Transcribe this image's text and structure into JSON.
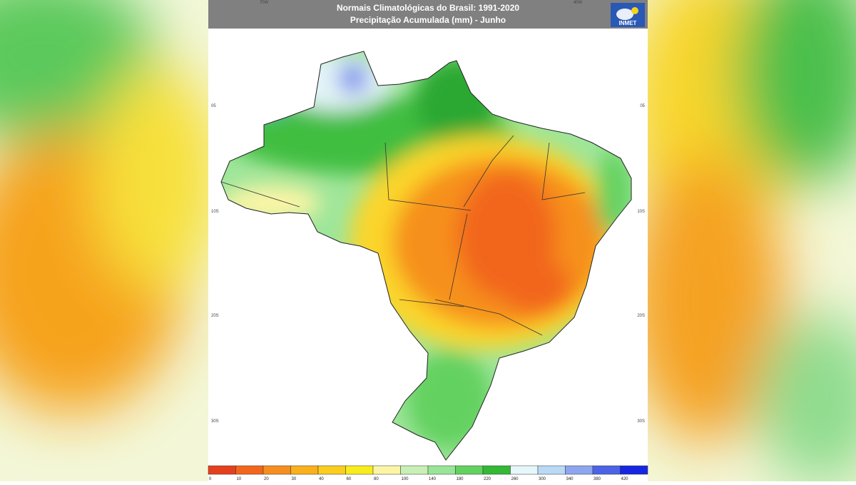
{
  "header": {
    "title": "Normais Climatológicas do Brasil: 1991-2020",
    "subtitle": "Precipitação Acumulada (mm) - Junho",
    "logo": "INMET"
  },
  "map": {
    "lon_labels": [
      "70W",
      "40W"
    ],
    "lat_labels": [
      "05",
      "10S",
      "20S",
      "30S"
    ]
  },
  "legend": {
    "items": [
      {
        "value": 0,
        "color": "#e5401d"
      },
      {
        "value": 10,
        "color": "#f2661c"
      },
      {
        "value": 20,
        "color": "#f68e1f"
      },
      {
        "value": 30,
        "color": "#f9b01d"
      },
      {
        "value": 40,
        "color": "#fbcd1f"
      },
      {
        "value": 60,
        "color": "#f9ec1c"
      },
      {
        "value": 80,
        "color": "#fdf5a6"
      },
      {
        "value": 100,
        "color": "#c8efb5"
      },
      {
        "value": 140,
        "color": "#99e597"
      },
      {
        "value": 180,
        "color": "#63d160"
      },
      {
        "value": 220,
        "color": "#34b836"
      },
      {
        "value": 260,
        "color": "#e6f7fb"
      },
      {
        "value": 300,
        "color": "#b9d9f5"
      },
      {
        "value": 340,
        "color": "#8ea6ef"
      },
      {
        "value": 380,
        "color": "#4c63e6"
      },
      {
        "value": 420,
        "color": "#1626e0"
      }
    ]
  }
}
